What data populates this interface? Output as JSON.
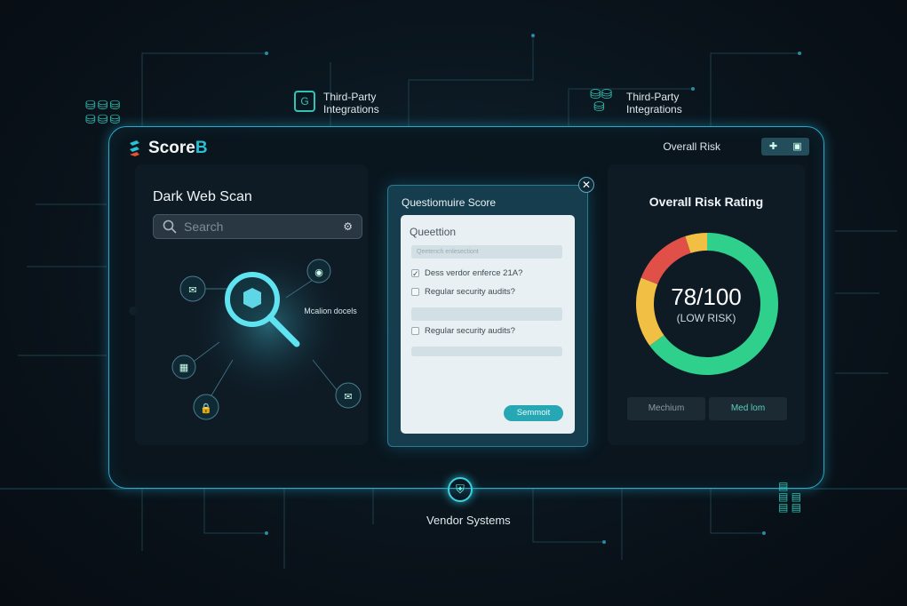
{
  "floating_labels": {
    "integrations_left": [
      "Third-Party",
      "Integrations"
    ],
    "integrations_right": [
      "Third-Party",
      "Integrations"
    ],
    "vendor_systems": "Vendor Systems"
  },
  "header": {
    "brand": "Score",
    "brand_accent": "B",
    "overall_risk_label": "Overall Risk",
    "icons": [
      "puzzle-icon",
      "clipboard-icon"
    ]
  },
  "dark_web_scan": {
    "title": "Dark Web Scan",
    "search_placeholder": "Search",
    "scan_text": "Mcalion docels"
  },
  "questionnaire": {
    "title": "Questiomuire Score",
    "heading": "Queettion",
    "input_placeholder": "Qeetench enlesectiont",
    "items": [
      {
        "label": "Dess verdor enferce 21A?",
        "checked": true
      },
      {
        "label": "Regular security audits?",
        "checked": false
      },
      {
        "label": "Regular security audits?",
        "checked": false
      }
    ],
    "submit_label": "Semmoit"
  },
  "risk": {
    "title": "Overall Risk Rating",
    "score": "78/100",
    "level": "(LOW RISK)",
    "segments": [
      {
        "color": "#2fd08c",
        "fraction": 0.65
      },
      {
        "color": "#f0bf44",
        "fraction": 0.16
      },
      {
        "color": "#e05048",
        "fraction": 0.14
      },
      {
        "color": "#f0bf44",
        "fraction": 0.05
      }
    ],
    "buttons": [
      "Mechium",
      "Med lom"
    ],
    "colors": {
      "accent": "#27c1d6",
      "low": "#2fd08c",
      "medium": "#f0bf44",
      "high": "#e05048"
    }
  }
}
